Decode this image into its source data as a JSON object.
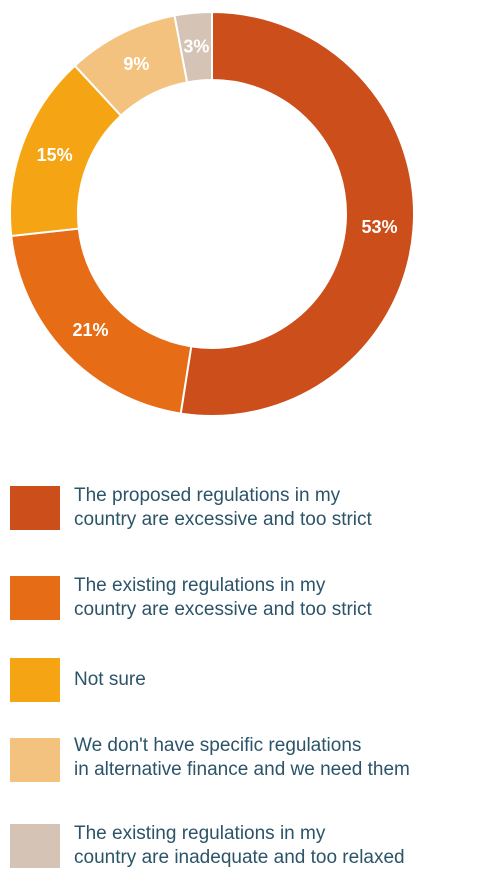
{
  "chart_data": {
    "type": "pie",
    "donut": true,
    "slices": [
      {
        "label": "The proposed regulations in my\ncountry are excessive and too strict",
        "value": 53,
        "display": "53%",
        "color": "#cc4e1a"
      },
      {
        "label": "The existing regulations in my\ncountry are excessive and too strict",
        "value": 21,
        "display": "21%",
        "color": "#e66c16"
      },
      {
        "label": "Not sure",
        "value": 15,
        "display": "15%",
        "color": "#f5a514"
      },
      {
        "label": "We don't have specific regulations\nin alternative finance and we need them",
        "value": 9,
        "display": "9%",
        "color": "#f2c27e"
      },
      {
        "label": "The existing regulations in my\ncountry are inadequate and too relaxed",
        "value": 3,
        "display": "3%",
        "color": "#d5c3b6"
      }
    ],
    "legend_position": "bottom"
  },
  "legend": {
    "text_color": "#2c5468"
  }
}
